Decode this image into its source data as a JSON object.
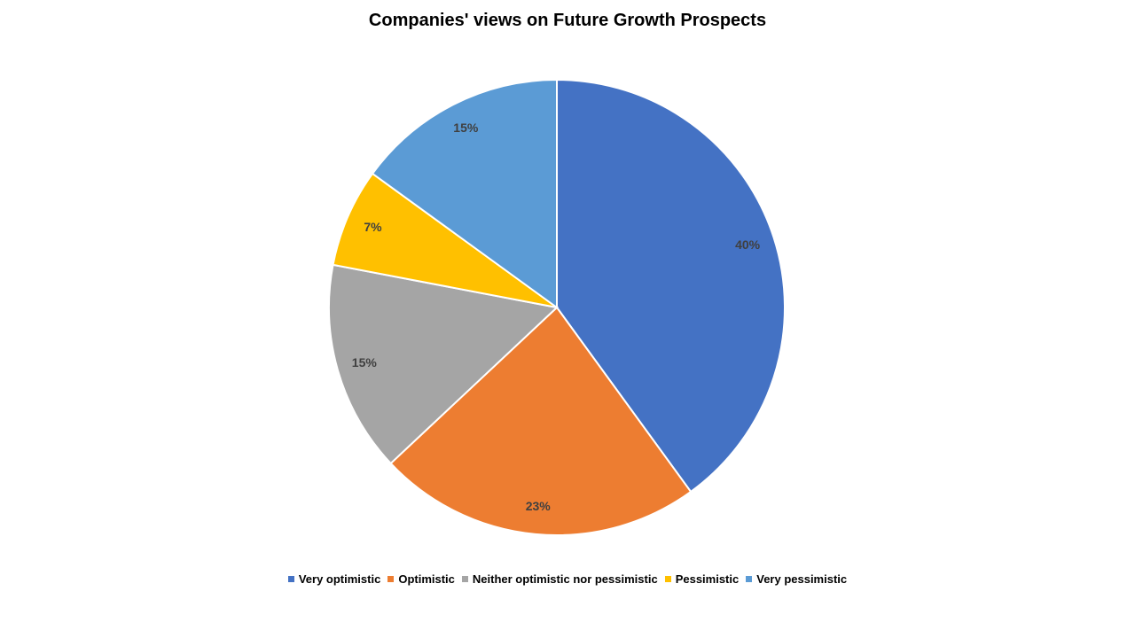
{
  "chart_data": {
    "type": "pie",
    "title": "Companies' views on Future Growth Prospects",
    "categories": [
      "Very optimistic",
      "Optimistic",
      "Neither optimistic nor pessimistic",
      "Pessimistic",
      "Very pessimistic"
    ],
    "values": [
      40,
      23,
      15,
      7,
      15
    ],
    "labels": [
      "40%",
      "23%",
      "15%",
      "7%",
      "15%"
    ],
    "colors": [
      "#4472C4",
      "#ED7D31",
      "#A5A5A5",
      "#FFC000",
      "#5B9BD5"
    ],
    "legend_position": "bottom"
  }
}
